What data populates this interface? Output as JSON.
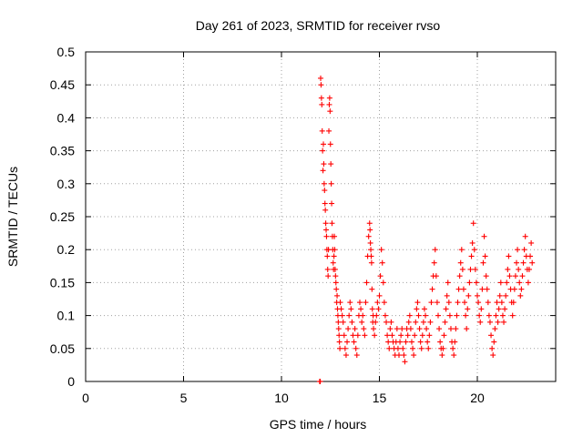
{
  "chart_data": {
    "type": "scatter",
    "title": "Day 261 of 2023, SRMTID for receiver rvso",
    "xlabel": "GPS time / hours",
    "ylabel": "SRMTID / TECUs",
    "xlim": [
      0,
      24
    ],
    "ylim": [
      0,
      0.5
    ],
    "xticks": [
      "0",
      "5",
      "10",
      "15",
      "20"
    ],
    "yticks": [
      "0",
      "0.05",
      "0.1",
      "0.15",
      "0.2",
      "0.25",
      "0.3",
      "0.35",
      "0.4",
      "0.45",
      "0.5"
    ],
    "grid": true,
    "marker": "+",
    "colors": {
      "series": "#ff0000"
    },
    "series": [
      {
        "x": [
          11.95,
          11.96,
          11.98,
          12.0,
          12.02,
          12.04,
          12.06,
          12.08,
          12.1,
          12.12,
          12.14,
          12.16,
          12.18,
          12.2,
          12.22,
          12.24,
          12.26,
          12.28,
          12.3,
          12.32,
          12.34,
          12.36,
          12.38,
          12.4,
          12.42,
          12.44,
          12.46,
          12.48,
          12.5,
          12.52,
          12.54,
          12.56,
          12.58,
          12.6,
          12.62,
          12.64,
          12.66,
          12.68,
          12.7,
          12.72,
          12.74,
          12.76,
          12.78,
          12.8,
          12.82,
          12.84,
          12.86,
          12.88,
          12.9,
          12.92,
          12.94,
          12.96,
          12.98,
          13.0,
          13.05,
          13.1,
          13.15,
          13.2,
          13.25,
          13.3,
          13.35,
          13.4,
          13.45,
          13.5,
          13.55,
          13.6,
          13.65,
          13.7,
          13.75,
          13.8,
          13.85,
          13.9,
          13.95,
          14.0,
          14.05,
          14.1,
          14.15,
          14.2,
          14.25,
          14.3,
          14.35,
          14.4,
          14.45,
          14.5,
          14.52,
          14.54,
          14.56,
          14.58,
          14.6,
          14.62,
          14.64,
          14.66,
          14.68,
          14.7,
          14.75,
          14.8,
          14.85,
          14.9,
          14.95,
          15.0,
          15.05,
          15.1,
          15.15,
          15.2,
          15.25,
          15.3,
          15.35,
          15.4,
          15.45,
          15.5,
          15.55,
          15.6,
          15.65,
          15.7,
          15.75,
          15.8,
          15.85,
          15.9,
          15.95,
          16.0,
          16.05,
          16.1,
          16.15,
          16.2,
          16.25,
          16.3,
          16.35,
          16.4,
          16.45,
          16.5,
          16.55,
          16.6,
          16.65,
          16.7,
          16.75,
          16.8,
          16.85,
          16.9,
          16.95,
          17.0,
          17.05,
          17.1,
          17.15,
          17.2,
          17.25,
          17.3,
          17.35,
          17.4,
          17.45,
          17.5,
          17.55,
          17.6,
          17.65,
          17.7,
          17.75,
          17.8,
          17.85,
          17.9,
          17.95,
          18.0,
          18.05,
          18.1,
          18.15,
          18.2,
          18.25,
          18.3,
          18.35,
          18.4,
          18.45,
          18.5,
          18.55,
          18.6,
          18.65,
          18.7,
          18.75,
          18.8,
          18.85,
          18.9,
          18.95,
          19.0,
          19.05,
          19.1,
          19.15,
          19.2,
          19.25,
          19.3,
          19.35,
          19.4,
          19.45,
          19.5,
          19.55,
          19.6,
          19.65,
          19.7,
          19.75,
          19.8,
          19.85,
          19.9,
          19.95,
          20.0,
          20.05,
          20.1,
          20.15,
          20.2,
          20.25,
          20.3,
          20.35,
          20.4,
          20.45,
          20.5,
          20.55,
          20.6,
          20.65,
          20.7,
          20.75,
          20.8,
          20.85,
          20.9,
          20.95,
          21.0,
          21.05,
          21.1,
          21.15,
          21.2,
          21.25,
          21.3,
          21.35,
          21.4,
          21.45,
          21.5,
          21.55,
          21.6,
          21.65,
          21.7,
          21.75,
          21.8,
          21.85,
          21.9,
          21.95,
          22.0,
          22.05,
          22.1,
          22.15,
          22.2,
          22.25,
          22.3,
          22.35,
          22.4,
          22.45,
          22.5,
          22.55,
          22.6,
          22.65,
          22.7,
          22.75,
          22.8
        ],
        "y": [
          0.0,
          0.0,
          0.0,
          0.46,
          0.45,
          0.43,
          0.42,
          0.38,
          0.35,
          0.32,
          0.36,
          0.33,
          0.3,
          0.29,
          0.27,
          0.26,
          0.24,
          0.23,
          0.22,
          0.2,
          0.19,
          0.17,
          0.16,
          0.2,
          0.38,
          0.42,
          0.43,
          0.41,
          0.36,
          0.33,
          0.3,
          0.27,
          0.24,
          0.22,
          0.2,
          0.18,
          0.17,
          0.19,
          0.22,
          0.2,
          0.17,
          0.16,
          0.15,
          0.14,
          0.12,
          0.13,
          0.11,
          0.1,
          0.09,
          0.08,
          0.07,
          0.06,
          0.05,
          0.12,
          0.11,
          0.1,
          0.09,
          0.07,
          0.05,
          0.04,
          0.06,
          0.08,
          0.1,
          0.12,
          0.11,
          0.09,
          0.07,
          0.06,
          0.08,
          0.05,
          0.04,
          0.07,
          0.1,
          0.12,
          0.11,
          0.09,
          0.1,
          0.08,
          0.07,
          0.12,
          0.15,
          0.19,
          0.22,
          0.24,
          0.23,
          0.21,
          0.2,
          0.19,
          0.18,
          0.14,
          0.11,
          0.09,
          0.1,
          0.08,
          0.07,
          0.09,
          0.1,
          0.12,
          0.11,
          0.13,
          0.16,
          0.2,
          0.18,
          0.15,
          0.12,
          0.1,
          0.09,
          0.07,
          0.06,
          0.05,
          0.08,
          0.09,
          0.07,
          0.06,
          0.05,
          0.04,
          0.06,
          0.08,
          0.05,
          0.04,
          0.06,
          0.07,
          0.08,
          0.05,
          0.04,
          0.03,
          0.06,
          0.08,
          0.07,
          0.09,
          0.1,
          0.08,
          0.06,
          0.05,
          0.04,
          0.07,
          0.09,
          0.11,
          0.12,
          0.1,
          0.08,
          0.06,
          0.05,
          0.07,
          0.09,
          0.11,
          0.1,
          0.08,
          0.06,
          0.05,
          0.07,
          0.09,
          0.12,
          0.14,
          0.16,
          0.18,
          0.2,
          0.16,
          0.12,
          0.1,
          0.08,
          0.06,
          0.05,
          0.04,
          0.05,
          0.07,
          0.09,
          0.11,
          0.13,
          0.15,
          0.12,
          0.1,
          0.08,
          0.06,
          0.05,
          0.04,
          0.06,
          0.08,
          0.1,
          0.12,
          0.14,
          0.16,
          0.18,
          0.2,
          0.17,
          0.14,
          0.12,
          0.1,
          0.08,
          0.11,
          0.13,
          0.15,
          0.17,
          0.19,
          0.21,
          0.24,
          0.2,
          0.17,
          0.15,
          0.13,
          0.12,
          0.1,
          0.09,
          0.11,
          0.14,
          0.18,
          0.22,
          0.19,
          0.16,
          0.14,
          0.12,
          0.1,
          0.09,
          0.07,
          0.05,
          0.04,
          0.06,
          0.08,
          0.1,
          0.12,
          0.09,
          0.11,
          0.13,
          0.15,
          0.12,
          0.1,
          0.09,
          0.11,
          0.13,
          0.15,
          0.17,
          0.19,
          0.16,
          0.14,
          0.12,
          0.1,
          0.12,
          0.14,
          0.16,
          0.18,
          0.2,
          0.17,
          0.15,
          0.13,
          0.14,
          0.16,
          0.18,
          0.2,
          0.22,
          0.19,
          0.17,
          0.15,
          0.17,
          0.19,
          0.21,
          0.18
        ]
      }
    ]
  }
}
